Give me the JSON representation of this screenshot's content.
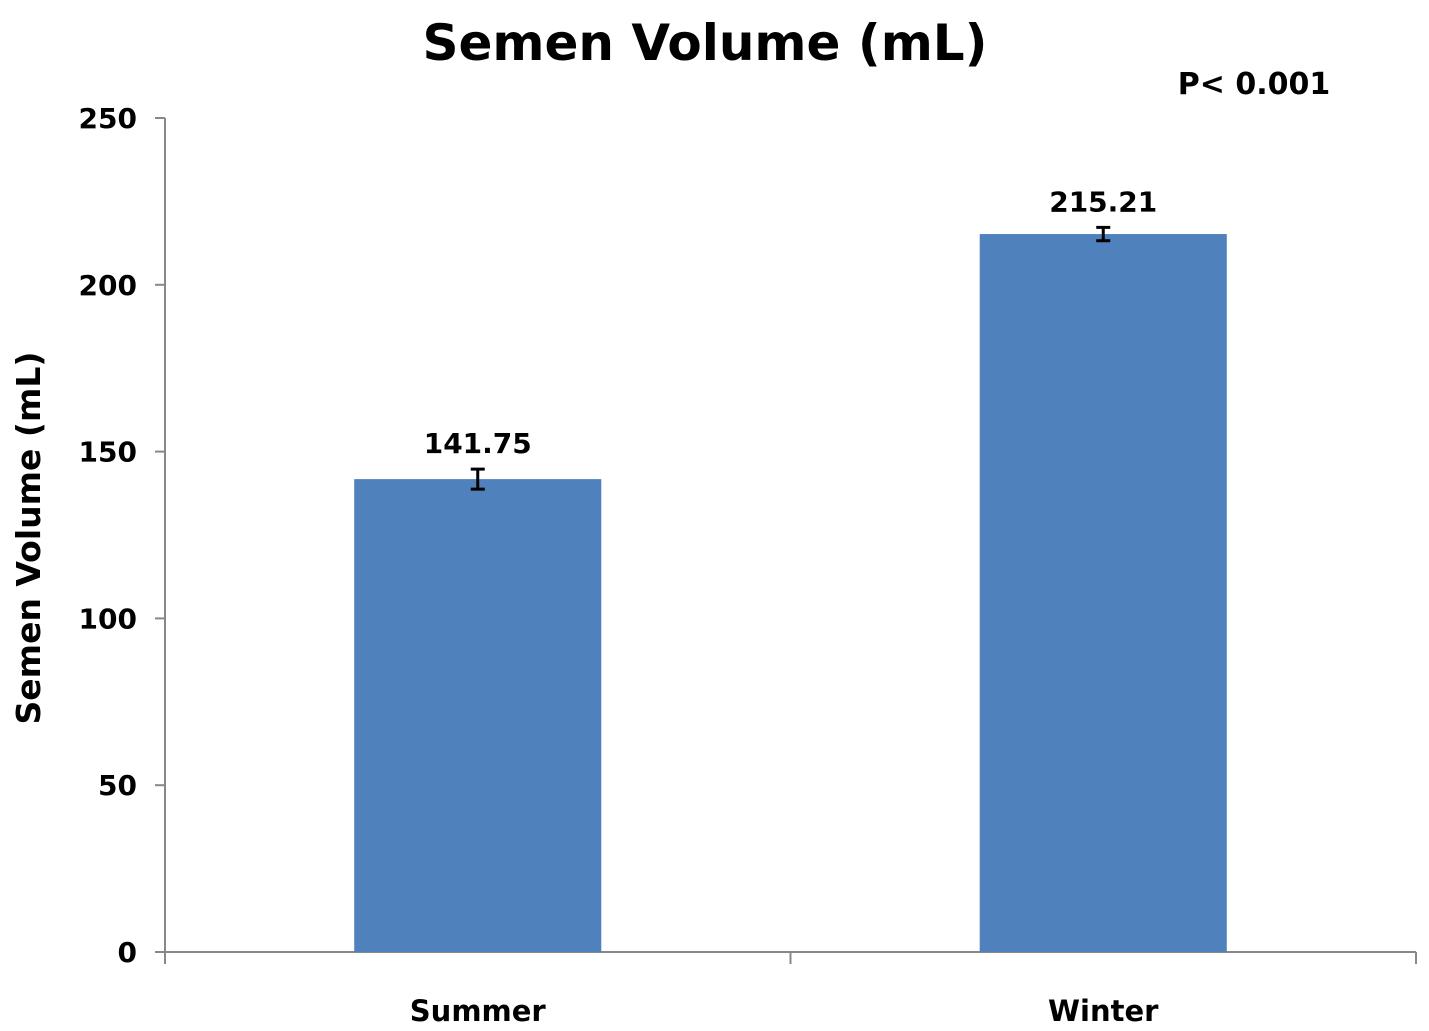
{
  "chart_data": {
    "type": "bar",
    "title": "Semen Volume (mL)",
    "annotation": "P< 0.001",
    "ylabel": "Semen Volume (mL)",
    "xlabel": "",
    "categories": [
      "Summer",
      "Winter"
    ],
    "values": [
      141.75,
      215.21
    ],
    "value_labels": [
      "141.75",
      "215.21"
    ],
    "error": [
      3,
      2
    ],
    "ylim": [
      0,
      250
    ],
    "yticks": [
      0,
      50,
      100,
      150,
      200,
      250
    ],
    "grid": false,
    "legend": "none",
    "bar_color": "#4f81bd"
  }
}
